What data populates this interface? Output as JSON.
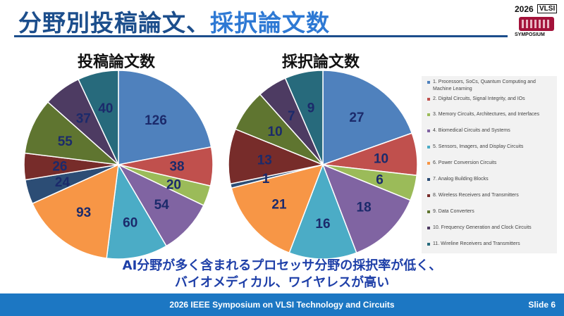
{
  "slide": {
    "title_main": "分野別投稿論文、",
    "title_accent": "採択論文数",
    "caption_line1": "AI分野が多く含まれるプロセッサ分野の採択率が低く、",
    "caption_line2": "バイオメディカル、ワイヤレスが高い",
    "footer": "2026 IEEE Symposium on VLSI Technology and Circuits",
    "slide_number": "Slide 6"
  },
  "logo": {
    "year": "2026",
    "name": "VLSI",
    "sub": "SYMPOSIUM"
  },
  "colors": [
    "#4f81bd",
    "#c0504d",
    "#9bbb59",
    "#8064a2",
    "#4bacc6",
    "#f79646",
    "#2c4d75",
    "#772c2a",
    "#5f7530",
    "#4d3b62",
    "#276a7c"
  ],
  "legend": [
    "1. Processors, SoCs, Quantum Computing and Machine Learning",
    "2. Digital Circuits, Signal Integrity, and IOs",
    "3. Memory Circuits, Architectures, and Interfaces",
    "4. Biomedical Circuits and Systems",
    "5. Sensors, Imagers, and Display Circuits",
    "6. Power Conversion Circuits",
    "7. Analog Building Blocks",
    "8. Wireless Receivers and Transmitters",
    "9. Data Converters",
    "10. Frequency Generation and Clock Circuits",
    "11. Wireline Receivers and Transmitters"
  ],
  "chart_data": [
    {
      "type": "pie",
      "title": "投稿論文数",
      "categories": [
        "1. Processors, SoCs, Quantum Computing and Machine Learning",
        "2. Digital Circuits, Signal Integrity, and IOs",
        "3. Memory Circuits, Architectures, and Interfaces",
        "4. Biomedical Circuits and Systems",
        "5. Sensors, Imagers, and Display Circuits",
        "6. Power Conversion Circuits",
        "7. Analog Building Blocks",
        "8. Wireless Receivers and Transmitters",
        "9. Data Converters",
        "10. Frequency Generation and Clock Circuits",
        "11. Wireline Receivers and Transmitters"
      ],
      "values": [
        126,
        38,
        20,
        54,
        60,
        93,
        24,
        26,
        55,
        37,
        40
      ]
    },
    {
      "type": "pie",
      "title": "採択論文数",
      "categories": [
        "1. Processors, SoCs, Quantum Computing and Machine Learning",
        "2. Digital Circuits, Signal Integrity, and IOs",
        "3. Memory Circuits, Architectures, and Interfaces",
        "4. Biomedical Circuits and Systems",
        "5. Sensors, Imagers, and Display Circuits",
        "6. Power Conversion Circuits",
        "7. Analog Building Blocks",
        "8. Wireless Receivers and Transmitters",
        "9. Data Converters",
        "10. Frequency Generation and Clock Circuits",
        "11. Wireline Receivers and Transmitters"
      ],
      "values": [
        27,
        10,
        6,
        18,
        16,
        21,
        1,
        13,
        10,
        7,
        9
      ]
    }
  ]
}
